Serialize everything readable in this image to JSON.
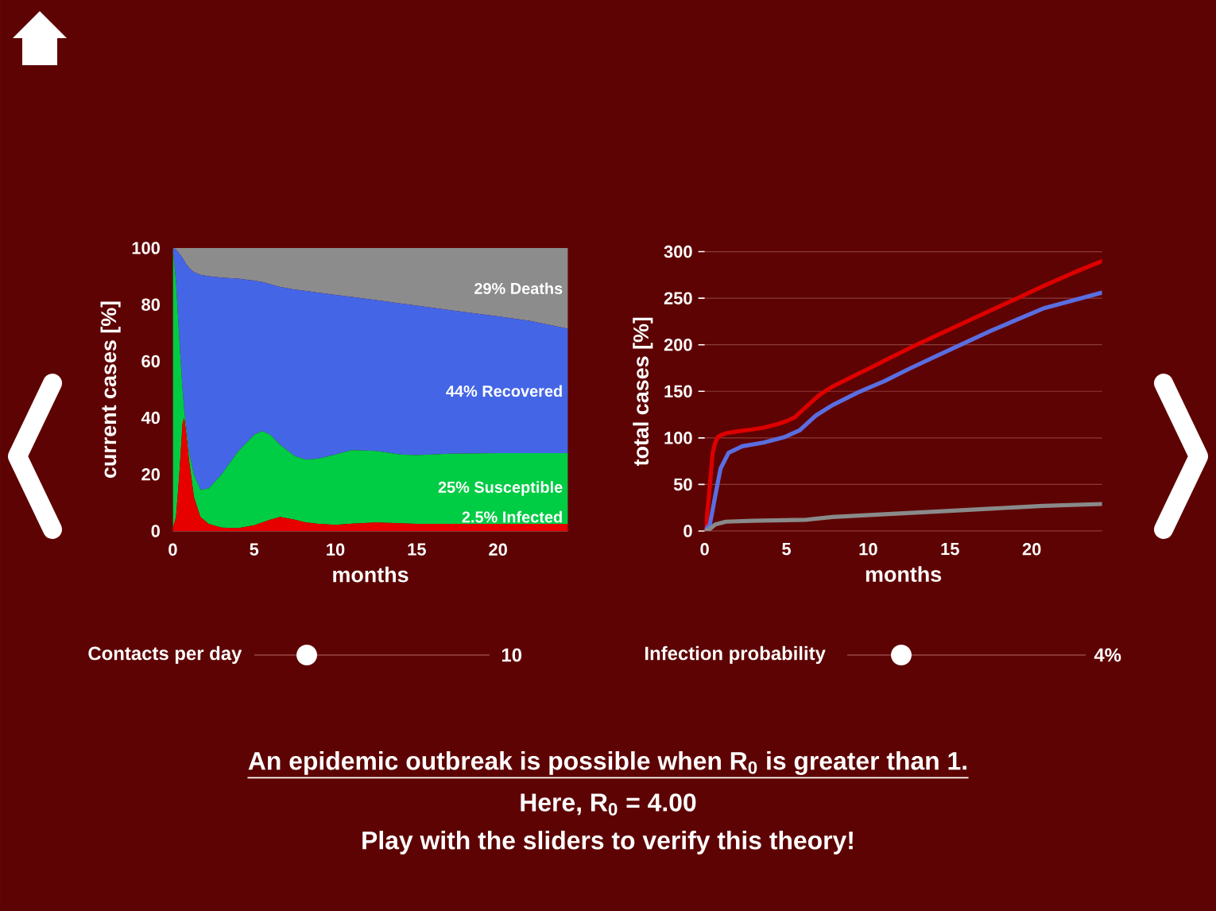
{
  "chart_data": [
    {
      "type": "area",
      "stacked": true,
      "x": [
        0,
        0.2,
        0.4,
        0.6,
        0.7,
        0.8,
        1.0,
        1.3,
        1.7,
        2.2,
        3,
        4,
        5,
        5.5,
        6,
        6.6,
        7.5,
        8.2,
        9,
        10,
        11,
        12.5,
        14,
        15,
        17,
        20,
        22,
        24.3
      ],
      "series": [
        {
          "name": "2.5% Infected",
          "color": "#e60000",
          "values": [
            1,
            5,
            20,
            38,
            40,
            36,
            25,
            12,
            5,
            2.5,
            1.2,
            1,
            2,
            3,
            4,
            5,
            4,
            3,
            2.5,
            2.2,
            2.6,
            3,
            2.7,
            2.5,
            2.5,
            2.5,
            2.5,
            2.5
          ]
        },
        {
          "name": "25% Susceptible",
          "color": "#00cc44",
          "values": [
            99,
            83,
            48,
            12,
            3,
            2,
            3,
            8,
            9.5,
            12.5,
            18.8,
            27,
            32,
            32.3,
            30,
            25.5,
            22.5,
            22.2,
            23.1,
            24.8,
            26,
            25.3,
            24.3,
            24.3,
            24.8,
            25,
            25,
            25
          ]
        },
        {
          "name": "44% Recovered",
          "color": "#4466e6",
          "values": [
            0,
            11.5,
            30,
            46.5,
            52.5,
            56.5,
            65,
            71.5,
            76,
            75,
            69.5,
            61.2,
            54.5,
            52.7,
            53.2,
            55.7,
            58.8,
            59.6,
            58.6,
            56.4,
            54.1,
            53.3,
            53.4,
            52.8,
            50.8,
            48.3,
            46.7,
            44
          ]
        },
        {
          "name": "29% Deaths",
          "color": "#8c8c8c",
          "values": [
            0,
            0.5,
            2,
            3.5,
            4.5,
            5.5,
            7,
            8.5,
            9.5,
            10,
            10.5,
            10.8,
            11.5,
            12,
            12.8,
            13.8,
            14.7,
            15.2,
            15.8,
            16.6,
            17.3,
            18.4,
            19.6,
            20.4,
            21.9,
            24.2,
            25.8,
            28.5
          ]
        }
      ],
      "xlabel": "months",
      "ylabel": "current cases [%]",
      "xlim": [
        0,
        24.3
      ],
      "ylim": [
        0,
        100
      ],
      "xticks": [
        0,
        5,
        10,
        15,
        20
      ],
      "yticks": [
        0,
        20,
        40,
        60,
        80,
        100
      ],
      "annotations": [
        "Contacts per day",
        "10"
      ]
    },
    {
      "type": "line",
      "marker": "none",
      "series": [
        {
          "color": "#dd0000",
          "x": [
            0,
            0.1,
            0.26,
            0.49,
            0.65,
            0.81,
            1.0,
            1.3,
            2.0,
            2.9,
            3.6,
            4.5,
            5.0,
            5.5,
            6.0,
            6.5,
            7.0,
            7.8,
            8.5,
            9.4,
            10,
            11,
            12.6,
            14.3,
            15.9,
            17.5,
            19,
            20.7,
            22.5,
            24.3
          ],
          "values": [
            0,
            8,
            38,
            84,
            95,
            101,
            103,
            105,
            107,
            109,
            111,
            115,
            118,
            122,
            130,
            138,
            146,
            155,
            161,
            169,
            174,
            183,
            197,
            211,
            224,
            237,
            249,
            263,
            277,
            290
          ]
        },
        {
          "color": "#5a6ee0",
          "x": [
            0,
            0.32,
            0.65,
            0.97,
            1.46,
            2.3,
            3.6,
            4.9,
            5.8,
            6.8,
            7.8,
            9.4,
            11,
            12.6,
            14.3,
            17.5,
            20.7,
            24.3
          ],
          "values": [
            0,
            7,
            38,
            67,
            84,
            91,
            95,
            101,
            108,
            124,
            135,
            149,
            161,
            175,
            189,
            215,
            239,
            256
          ]
        },
        {
          "color": "#8a8a8a",
          "x": [
            0,
            0.3,
            0.65,
            1.3,
            2.9,
            6.2,
            7.8,
            11,
            14.3,
            17.5,
            20.7,
            24.3
          ],
          "values": [
            0,
            2,
            7,
            10,
            11,
            12,
            15,
            18,
            21,
            24,
            27,
            29
          ]
        }
      ],
      "xlabel": "months",
      "ylabel": "total cases [%]",
      "xlim": [
        0,
        24.3
      ],
      "ylim": [
        0,
        300
      ],
      "xticks": [
        0,
        5,
        10,
        15,
        20
      ],
      "yticks": [
        0,
        50,
        100,
        150,
        200,
        250,
        300
      ],
      "grid": "y",
      "annotations": [
        "Infection probability",
        "4%"
      ]
    },
    {
      "type": "other",
      "annotations": [
        "An epidemic outbreak is possible when R$_{0}$ is greater than 1.",
        "Here, R$_{0}$ = 4.00",
        "Play with the sliders to verify this theory!"
      ]
    }
  ]
}
